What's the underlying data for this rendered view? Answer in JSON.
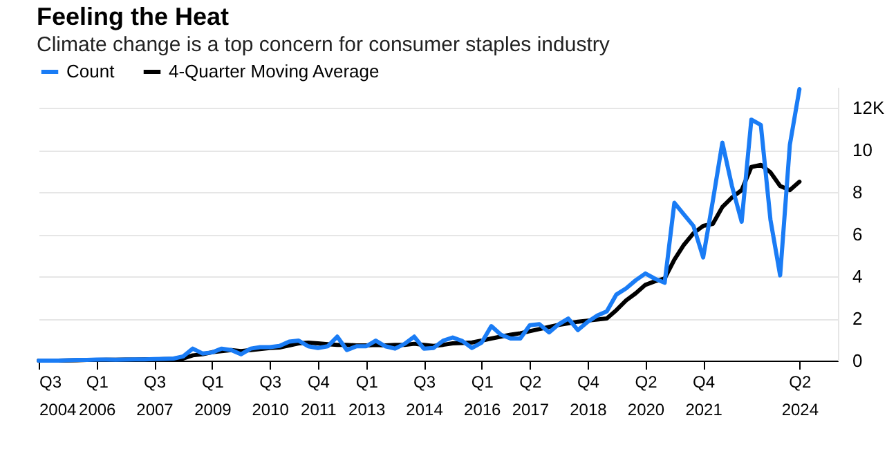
{
  "chart_data": {
    "type": "line",
    "title": "Feeling the Heat",
    "subtitle": "Climate change is a top concern for consumer staples industry",
    "x": [
      "2004-07",
      "2004-10",
      "2005-01",
      "2005-04",
      "2005-07",
      "2005-10",
      "2006-01",
      "2006-04",
      "2006-07",
      "2006-10",
      "2007-01",
      "2007-04",
      "2007-07",
      "2007-10",
      "2008-01",
      "2008-04",
      "2008-07",
      "2008-10",
      "2009-01",
      "2009-04",
      "2009-07",
      "2009-10",
      "2010-01",
      "2010-04",
      "2010-07",
      "2010-10",
      "2011-01",
      "2011-04",
      "2011-07",
      "2011-10",
      "2012-01",
      "2012-04",
      "2012-07",
      "2012-10",
      "2013-01",
      "2013-04",
      "2013-07",
      "2013-10",
      "2014-01",
      "2014-04",
      "2014-07",
      "2014-10",
      "2015-01",
      "2015-04",
      "2015-07",
      "2015-10",
      "2016-01",
      "2016-04",
      "2016-07",
      "2016-10",
      "2017-01",
      "2017-04",
      "2017-07",
      "2017-10",
      "2018-01",
      "2018-04",
      "2018-07",
      "2018-10",
      "2019-01",
      "2019-04",
      "2019-07",
      "2019-10",
      "2020-01",
      "2020-04",
      "2020-07",
      "2020-10",
      "2021-01",
      "2021-04",
      "2021-07",
      "2021-10",
      "2022-01",
      "2022-04",
      "2022-07",
      "2022-10",
      "2023-01",
      "2023-04",
      "2023-07",
      "2023-10",
      "2024-01",
      "2024-04"
    ],
    "series": [
      {
        "name": "Count",
        "color": "#1a7cf5",
        "values": [
          0,
          0,
          0,
          0.02,
          0.03,
          0.03,
          0.05,
          0.05,
          0.04,
          0.05,
          0.06,
          0.06,
          0.07,
          0.08,
          0.1,
          0.2,
          0.57,
          0.34,
          0.39,
          0.57,
          0.5,
          0.3,
          0.57,
          0.64,
          0.64,
          0.7,
          0.9,
          0.95,
          0.68,
          0.6,
          0.68,
          1.14,
          0.5,
          0.68,
          0.68,
          0.95,
          0.68,
          0.57,
          0.8,
          1.14,
          0.57,
          0.6,
          0.95,
          1.1,
          0.93,
          0.6,
          0.86,
          1.64,
          1.23,
          1.05,
          1.05,
          1.68,
          1.73,
          1.34,
          1.73,
          2.0,
          1.45,
          1.84,
          2.14,
          2.34,
          3.14,
          3.43,
          3.82,
          4.14,
          3.89,
          3.7,
          7.5,
          6.95,
          6.4,
          4.9,
          7.6,
          10.36,
          8.3,
          6.6,
          11.45,
          11.2,
          6.7,
          4.05,
          10.25,
          12.9
        ]
      },
      {
        "name": "4-Quarter Moving Average",
        "color": "#000000",
        "values": [
          0,
          0,
          0,
          0.01,
          0.02,
          0.03,
          0.03,
          0.04,
          0.04,
          0.05,
          0.05,
          0.06,
          0.06,
          0.07,
          0.08,
          0.1,
          0.25,
          0.3,
          0.4,
          0.45,
          0.5,
          0.45,
          0.5,
          0.55,
          0.6,
          0.62,
          0.72,
          0.82,
          0.85,
          0.82,
          0.78,
          0.75,
          0.75,
          0.72,
          0.72,
          0.75,
          0.72,
          0.75,
          0.75,
          0.8,
          0.75,
          0.7,
          0.75,
          0.82,
          0.84,
          0.86,
          0.95,
          1.05,
          1.14,
          1.23,
          1.3,
          1.4,
          1.5,
          1.6,
          1.7,
          1.77,
          1.85,
          1.9,
          1.95,
          2.0,
          2.4,
          2.86,
          3.2,
          3.6,
          3.77,
          3.9,
          4.8,
          5.5,
          6.05,
          6.4,
          6.5,
          7.3,
          7.75,
          8.1,
          9.2,
          9.3,
          8.95,
          8.3,
          8.1,
          8.5
        ]
      }
    ],
    "xlim": [
      "2004-07",
      "2025-04"
    ],
    "xticks": [
      {
        "value": "2004-07",
        "label": "Q3\n2004"
      },
      {
        "value": "2006-01",
        "label": "Q1\n2006"
      },
      {
        "value": "2007-07",
        "label": "Q3\n2007"
      },
      {
        "value": "2009-01",
        "label": "Q1\n2009"
      },
      {
        "value": "2010-07",
        "label": "Q3\n2010"
      },
      {
        "value": "2011-10",
        "label": "Q4\n2011"
      },
      {
        "value": "2013-01",
        "label": "Q1\n2013"
      },
      {
        "value": "2014-07",
        "label": "Q3\n2014"
      },
      {
        "value": "2016-01",
        "label": "Q1\n2016"
      },
      {
        "value": "2017-04",
        "label": "Q2\n2017"
      },
      {
        "value": "2018-10",
        "label": "Q4\n2018"
      },
      {
        "value": "2020-04",
        "label": "Q2\n2020"
      },
      {
        "value": "2021-10",
        "label": "Q4\n2021"
      },
      {
        "value": "2024-04",
        "label": "Q2\n2024"
      }
    ],
    "ylim": [
      0,
      13
    ],
    "yticks": [
      0,
      2,
      4,
      6,
      8,
      10,
      {
        "value": 12,
        "label": "12K"
      }
    ],
    "grid": "y",
    "legend": "top left",
    "line_style": "solid"
  }
}
